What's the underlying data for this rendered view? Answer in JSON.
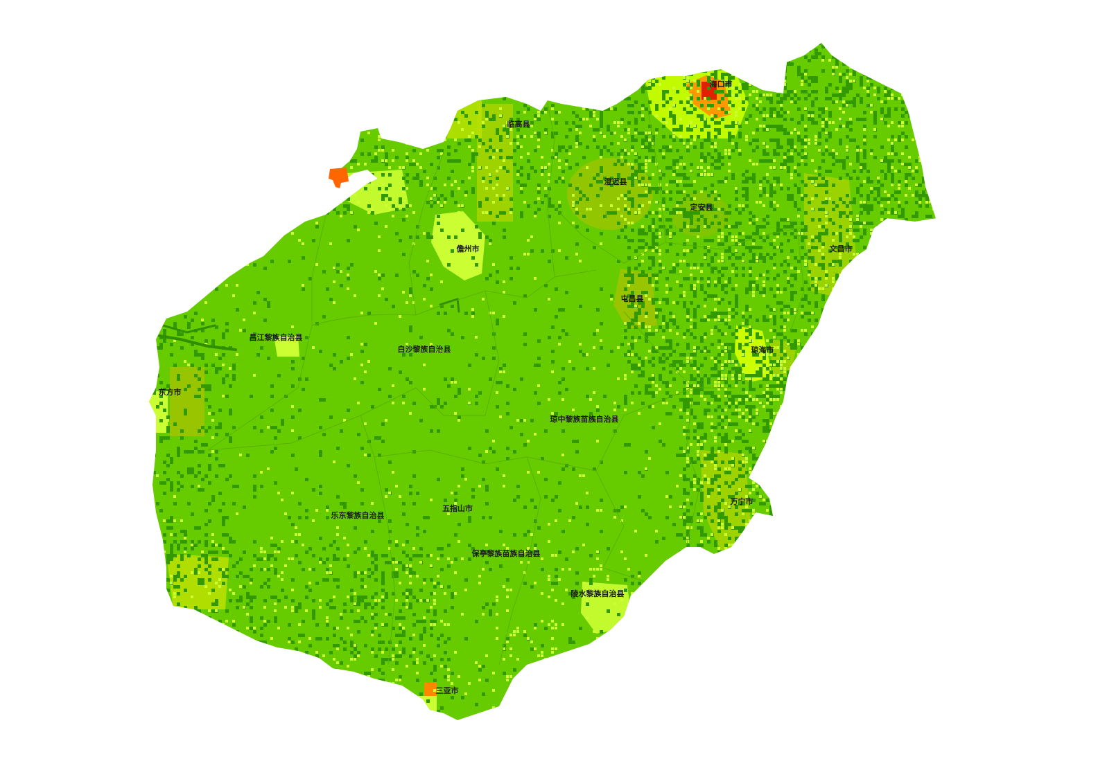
{
  "map": {
    "labels": [
      {
        "name": "海口市"
      },
      {
        "name": "临高县"
      },
      {
        "name": "澄迈县"
      },
      {
        "name": "定安县"
      },
      {
        "name": "儋州市"
      },
      {
        "name": "文昌市"
      },
      {
        "name": "屯昌县"
      },
      {
        "name": "昌江黎族自治县"
      },
      {
        "name": "白沙黎族自治县"
      },
      {
        "name": "琼海市"
      },
      {
        "name": "东方市"
      },
      {
        "name": "琼中黎族苗族自治县"
      },
      {
        "name": "万宁市"
      },
      {
        "name": "乐东黎族自治县"
      },
      {
        "name": "五指山市"
      },
      {
        "name": "保亭黎族苗族自治县"
      },
      {
        "name": "陵水黎族自治县"
      },
      {
        "name": "三亚市"
      }
    ],
    "colors": {
      "land": "#66cc00",
      "dark_green": "#339900",
      "olive": "#99c400",
      "yellow_green": "#b8e000",
      "yellow": "#ccff33",
      "orange": "#ff8800",
      "red": "#e02000"
    }
  }
}
